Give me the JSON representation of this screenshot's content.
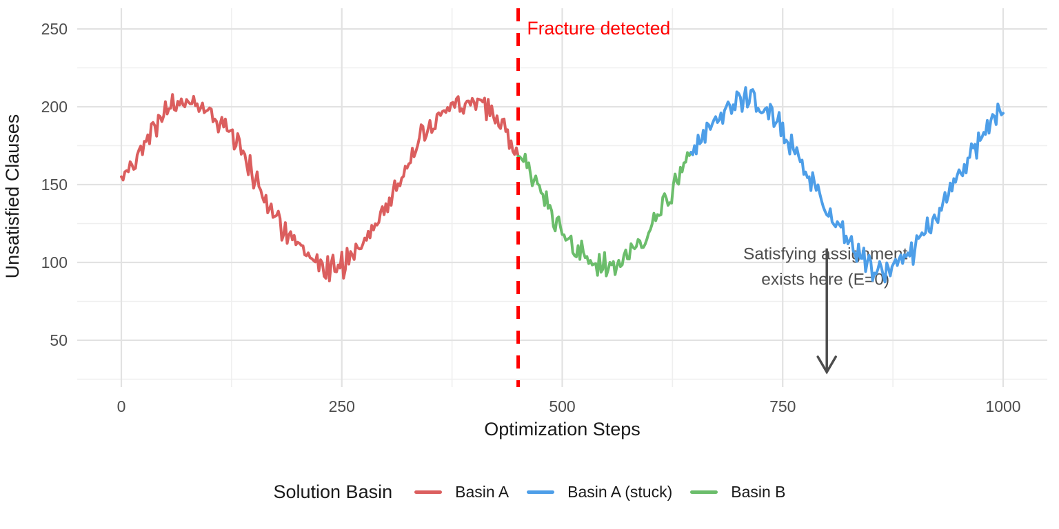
{
  "figure": {
    "background": "#FFFFFF"
  },
  "chart_data": {
    "type": "line",
    "title": "",
    "xlabel": "Optimization Steps",
    "ylabel": "Unsatisfied Clauses",
    "xlim": [
      0,
      1000
    ],
    "ylim": [
      20,
      263
    ],
    "x_ticks": [
      0,
      250,
      500,
      750,
      1000
    ],
    "y_ticks": [
      50,
      100,
      150,
      200,
      250
    ],
    "x_minor_ticks": [
      125,
      375,
      625,
      875
    ],
    "y_minor_ticks": [
      25,
      75,
      125,
      175,
      225
    ],
    "grid": {
      "major_color": "#E2E2E2",
      "minor_color": "#EFEFEF",
      "visible": true
    },
    "axis_text_color": "#4D4D4D",
    "axis_title_color": "#1A1A1A",
    "series": [
      {
        "name": "Basin A",
        "color": "#DB5E5E",
        "x_from": 0,
        "x_to": 450
      },
      {
        "name": "Basin B",
        "color": "#6BBD6B",
        "x_from": 450,
        "x_to": 646
      },
      {
        "name": "Basin A (stuck)",
        "color": "#4D9EE8",
        "x_from": 646,
        "x_to": 1000
      }
    ],
    "trend": {
      "description": "noisy sinusoid: y = mean + amplitude*cos(2*pi*(x-peak_x)/period) + noise",
      "mean": 150,
      "amplitude": 53,
      "period": 315,
      "peak_x": 77,
      "noise": 8,
      "step": 2,
      "seed": 42
    },
    "sampled_trend_points": [
      [
        0,
        152
      ],
      [
        50,
        195
      ],
      [
        100,
        198
      ],
      [
        150,
        156
      ],
      [
        200,
        109
      ],
      [
        250,
        100
      ],
      [
        300,
        136
      ],
      [
        350,
        186
      ],
      [
        400,
        202
      ],
      [
        450,
        171
      ],
      [
        500,
        122
      ],
      [
        550,
        97
      ],
      [
        600,
        123
      ],
      [
        650,
        172
      ],
      [
        700,
        202
      ],
      [
        750,
        186
      ],
      [
        800,
        135
      ],
      [
        850,
        99
      ],
      [
        900,
        110
      ],
      [
        950,
        157
      ],
      [
        1000,
        198
      ]
    ],
    "annotations": {
      "fracture": {
        "x": 450,
        "label": "Fracture detected",
        "color": "#FF0000",
        "style": "dashed"
      },
      "satisfying": {
        "x": 800,
        "line_top_y": 109,
        "line_bottom_y": 30,
        "label_line1": "Satisfying assignment",
        "label_line2": "exists here (E=0)",
        "color": "#4D4D4D"
      }
    },
    "legend": {
      "title": "Solution Basin",
      "position": "bottom",
      "entries": [
        {
          "label": "Basin A",
          "color": "#DB5E5E"
        },
        {
          "label": "Basin A (stuck)",
          "color": "#4D9EE8"
        },
        {
          "label": "Basin B",
          "color": "#6BBD6B"
        }
      ]
    }
  }
}
